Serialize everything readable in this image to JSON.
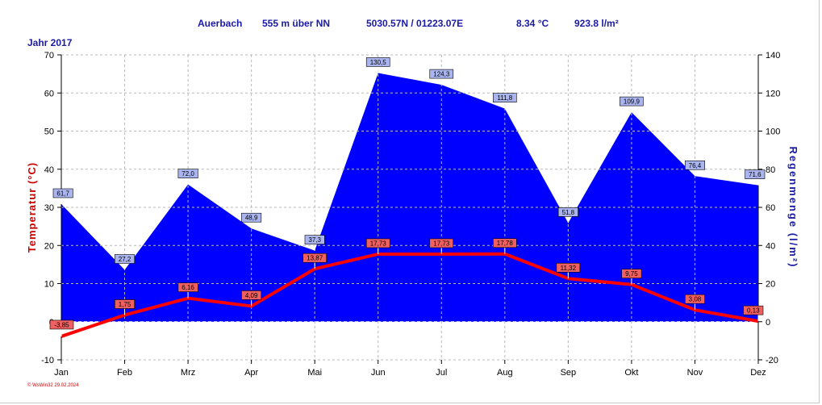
{
  "header": {
    "station": "Auerbach",
    "altitude": "555 m über NN",
    "coords": "5030.57N / 01223.07E",
    "avg_temp": "8.34 °C",
    "total_rain": "923.8 l/m²"
  },
  "year_label": "Jahr  2017",
  "footer": "© WsWin32  29.02.2024",
  "colors": {
    "rain": "#0000ff",
    "temp": "#ff0000",
    "axis_left": "#cc0000",
    "axis_right": "#1a1aa6"
  },
  "chart_data": {
    "type": "area",
    "categories": [
      "Jan",
      "Feb",
      "Mrz",
      "Apr",
      "Mai",
      "Jun",
      "Jul",
      "Aug",
      "Sep",
      "Okt",
      "Nov",
      "Dez"
    ],
    "series": [
      {
        "name": "Regenmenge",
        "axis": "right",
        "values": [
          61.7,
          27.2,
          72.0,
          48.9,
          37.3,
          130.5,
          124.3,
          111.8,
          51.8,
          109.9,
          76.4,
          71.6
        ],
        "labels": [
          "61,7",
          "27,2",
          "72,0",
          "48,9",
          "37,3",
          "130,5",
          "124,3",
          "111,8",
          "51,8",
          "109,9",
          "76,4",
          "71,6"
        ]
      },
      {
        "name": "Temperatur",
        "axis": "left",
        "values": [
          -3.85,
          1.75,
          6.16,
          4.09,
          13.87,
          17.73,
          17.73,
          17.78,
          11.32,
          9.75,
          3.08,
          0.13
        ],
        "labels": [
          "-3,85",
          "1,75",
          "6,16",
          "4,09",
          "13,87",
          "17,73",
          "17,73",
          "17,78",
          "11,32",
          "9,75",
          "3,08",
          "0,13"
        ]
      }
    ],
    "ylabel_left": "Temperatur  (°C)",
    "ylabel_right": "Regenmenge  (l/m²)",
    "ylim_left": [
      -10,
      70
    ],
    "ylim_right": [
      -20,
      140
    ],
    "yticks_left": [
      "70",
      "60",
      "50",
      "40",
      "30",
      "20",
      "10",
      "0",
      "-10"
    ],
    "yticks_right": [
      "140",
      "120",
      "100",
      "80",
      "60",
      "40",
      "20",
      "0",
      "-20"
    ],
    "grid": true
  }
}
